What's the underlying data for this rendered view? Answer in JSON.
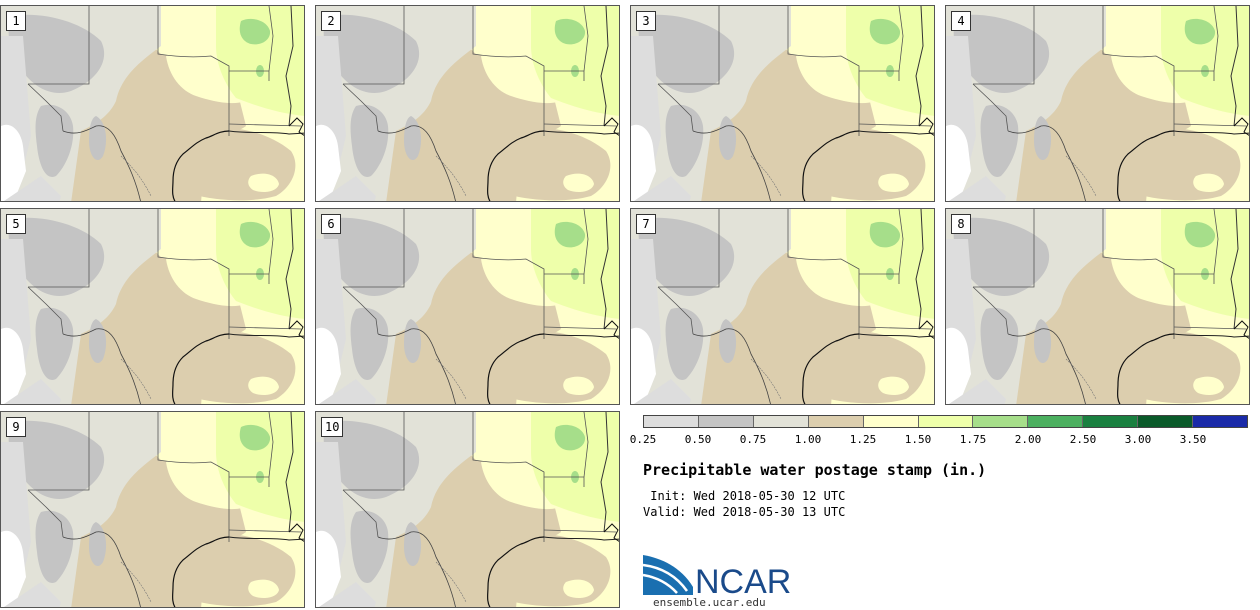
{
  "stamps": [
    {
      "member": "1"
    },
    {
      "member": "2"
    },
    {
      "member": "3"
    },
    {
      "member": "4"
    },
    {
      "member": "5"
    },
    {
      "member": "6"
    },
    {
      "member": "7"
    },
    {
      "member": "8"
    },
    {
      "member": "9"
    },
    {
      "member": "10"
    }
  ],
  "colorbar": {
    "colors": [
      "#dddddd",
      "#c4c4c4",
      "#e2e2d8",
      "#dcceae",
      "#ffffcc",
      "#eeffaa",
      "#a6de8a",
      "#4cb060",
      "#1a8040",
      "#0a5a2a",
      "#1a2aa8"
    ],
    "ticks": [
      "0.25",
      "0.50",
      "0.75",
      "1.00",
      "1.25",
      "1.50",
      "1.75",
      "2.00",
      "2.50",
      "3.00",
      "3.50"
    ]
  },
  "title": "Precipitable water postage stamp (in.)",
  "init_line": " Init: Wed 2018-05-30 12 UTC",
  "valid_line": "Valid: Wed 2018-05-30 13 UTC",
  "logo_text": "NCAR",
  "url": "ensemble.ucar.edu"
}
